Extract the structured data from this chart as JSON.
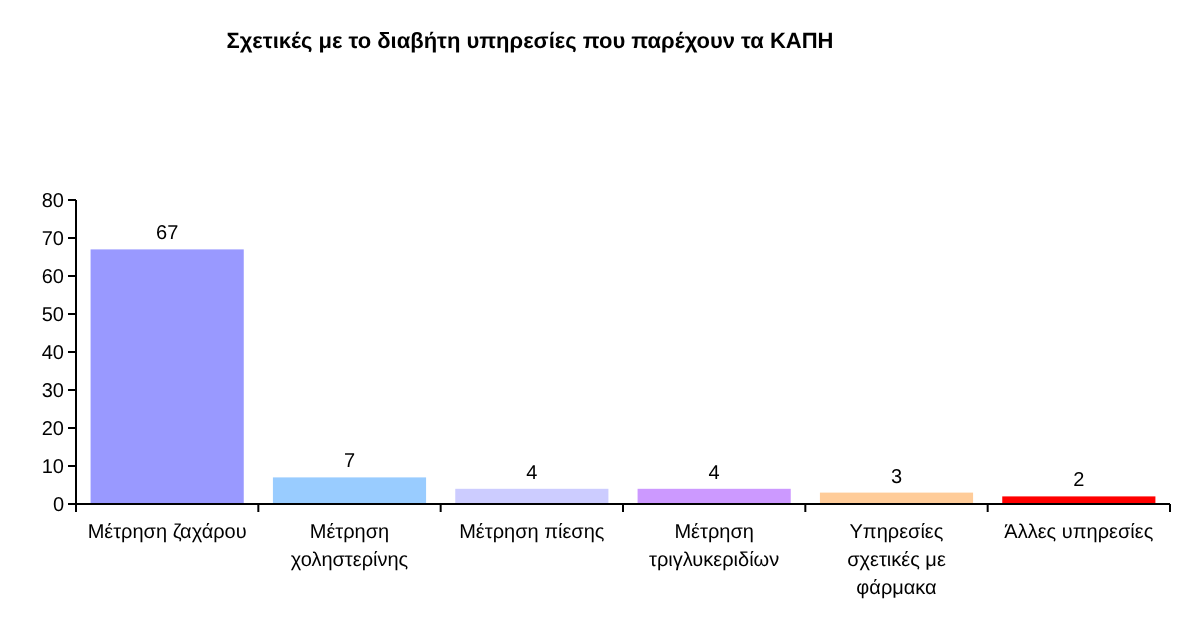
{
  "chart_data": {
    "type": "bar",
    "title": "Σχετικές με το διαβήτη υπηρεσίες που παρέχουν τα ΚΑΠΗ",
    "categories": [
      "Μέτρηση ζαχάρου",
      "Μέτρηση χοληστερίνης",
      "Μέτρηση πίεσης",
      "Μέτρηση τριγλυκεριδίων",
      "Υπηρεσίες σχετικές με φάρμακα",
      "Άλλες υπηρεσίες"
    ],
    "values": [
      67,
      7,
      4,
      4,
      3,
      2
    ],
    "colors": [
      "#9999ff",
      "#99ccff",
      "#ccccff",
      "#cc99ff",
      "#ffcc99",
      "#ff0000"
    ],
    "ylim": [
      0,
      80
    ],
    "yticks": [
      0,
      10,
      20,
      30,
      40,
      50,
      60,
      70,
      80
    ],
    "data_labels": true
  }
}
